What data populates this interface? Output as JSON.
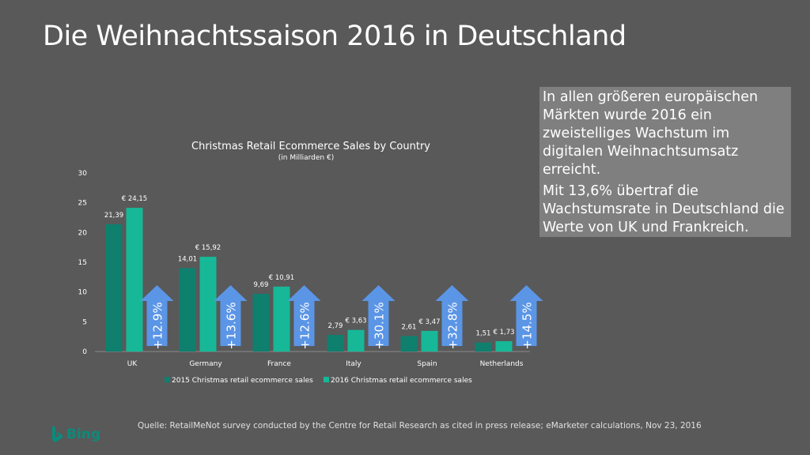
{
  "page": {
    "title": "Die Weihnachtssaison 2016 in Deutschland",
    "callout_p1": "In allen größeren europäischen Märkten wurde 2016 ein zweistelliges Wachstum im digitalen Weihnachtsumsatz erreicht.",
    "callout_p2": "Mit 13,6% übertraf die Wachstumsrate in Deutschland die Werte von UK und Frankreich.",
    "source": "Quelle: RetailMeNot survey conducted by the Centre for Retail Research as cited in press release; eMarketer calculations, Nov 23, 2016",
    "logo_text": "Bing",
    "logo_icon": "bing-icon"
  },
  "colors": {
    "background": "#595959",
    "series_2015": "#0f7f6e",
    "series_2016": "#17b897",
    "growth_arrow": "#5b95e6",
    "callout_bg": "#7f7f7f"
  },
  "chart_data": {
    "type": "bar",
    "title": "Christmas Retail Ecommerce Sales by Country",
    "subtitle": "(in Milliarden €)",
    "categories": [
      "UK",
      "Germany",
      "France",
      "Italy",
      "Spain",
      "Netherlands"
    ],
    "series": [
      {
        "name": "2015 Christmas retail ecommerce sales",
        "values": [
          21.39,
          14.01,
          9.69,
          2.79,
          2.61,
          1.51
        ],
        "labels": [
          "21,39",
          "14,01",
          "9,69",
          "2,79",
          "2,61",
          "1,51"
        ]
      },
      {
        "name": "2016 Christmas retail ecommerce sales",
        "values": [
          24.15,
          15.92,
          10.91,
          3.63,
          3.47,
          1.73
        ],
        "labels": [
          "€ 24,15",
          "€ 15,92",
          "€ 10,91",
          "€ 3,63",
          "€ 3,47",
          "€ 1,73"
        ]
      }
    ],
    "growth_labels": [
      "+12.9%",
      "+13.6%",
      "+12.6%",
      "+30.1%",
      "+32.8%",
      "+14.5%"
    ],
    "ylim": [
      0,
      30
    ],
    "yticks": [
      0,
      5,
      10,
      15,
      20,
      25,
      30
    ],
    "grid": false,
    "legend_position": "bottom"
  }
}
